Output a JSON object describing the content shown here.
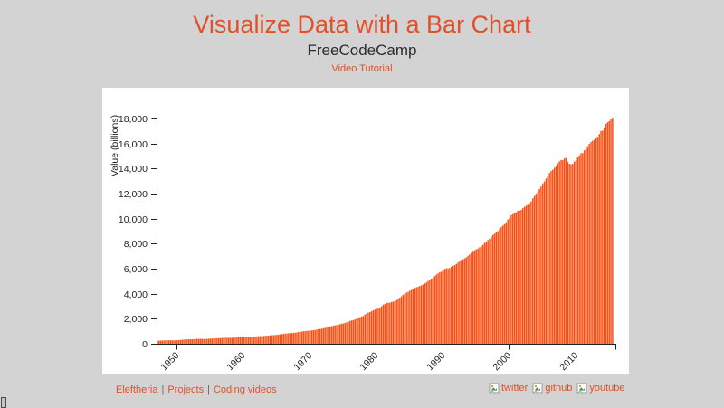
{
  "page": {
    "background": "#d3d3d3",
    "panel_background": "#ffffff",
    "accent": "#e1502a"
  },
  "header": {
    "title": "Visualize Data with a Bar Chart",
    "subtitle": "FreeCodeCamp",
    "video_link": "Video Tutorial"
  },
  "footer": {
    "links": [
      "Eleftheria",
      "Projects",
      "Coding videos"
    ],
    "separator": "|",
    "social": [
      {
        "icon": "twitter-broken-image-icon",
        "label": "twitter"
      },
      {
        "icon": "github-broken-image-icon",
        "label": "github"
      },
      {
        "icon": "youtube-broken-image-icon",
        "label": "youtube"
      }
    ]
  },
  "chart_data": {
    "type": "bar",
    "ylabel": "Value (billions)",
    "ylim": [
      0,
      18000
    ],
    "y_tick_values": [
      0,
      2000,
      4000,
      6000,
      8000,
      10000,
      12000,
      14000,
      16000,
      18000
    ],
    "x_tick_years": [
      1950,
      1960,
      1970,
      1980,
      1990,
      2000,
      2010
    ],
    "x_range": [
      1947.0,
      2015.75
    ],
    "x_start": 1947.0,
    "x_step": 0.25,
    "grid": false,
    "legend": false,
    "bar_color": "#fa4f13",
    "axis_color": "#222222",
    "values": [
      243.1,
      246.3,
      250.1,
      260.3,
      266.2,
      272.9,
      279.5,
      280.7,
      275.4,
      271.7,
      273.3,
      271.0,
      281.2,
      290.7,
      308.5,
      320.3,
      336.4,
      344.5,
      351.8,
      356.6,
      360.2,
      361.4,
      368.1,
      381.2,
      388.5,
      392.3,
      391.7,
      386.5,
      385.9,
      386.7,
      391.6,
      400.3,
      413.8,
      422.2,
      430.9,
      437.8,
      440.5,
      446.8,
      452.0,
      461.3,
      470.6,
      472.8,
      480.3,
      475.7,
      468.4,
      472.8,
      486.7,
      500.4,
      511.1,
      524.2,
      525.2,
      529.3,
      543.3,
      542.7,
      546.0,
      541.1,
      545.9,
      557.4,
      568.2,
      581.6,
      595.2,
      602.6,
      609.6,
      613.1,
      622.7,
      631.8,
      645.0,
      654.8,
      671.1,
      680.8,
      692.8,
      698.4,
      719.2,
      732.4,
      750.2,
      773.1,
      797.3,
      807.2,
      820.8,
      834.9,
      846.0,
      851.1,
      866.6,
      883.2,
      911.1,
      936.3,
      952.3,
      970.1,
      995.4,
      1011.4,
      1032.0,
      1040.7,
      1053.5,
      1070.1,
      1088.5,
      1091.5,
      1137.8,
      1159.4,
      1180.3,
      1193.6,
      1233.8,
      1270.1,
      1293.8,
      1332.0,
      1380.7,
      1417.6,
      1436.8,
      1479.1,
      1494.7,
      1534.2,
      1563.4,
      1603.0,
      1619.6,
      1656.4,
      1713.8,
      1765.9,
      1824.5,
      1856.9,
      1890.5,
      1938.4,
      1992.5,
      2060.2,
      2122.4,
      2168.7,
      2208.7,
      2336.6,
      2398.9,
      2482.2,
      2531.6,
      2595.9,
      2670.4,
      2730.7,
      2796.5,
      2799.9,
      2860.0,
      2993.5,
      3131.8,
      3167.3,
      3261.2,
      3283.5,
      3273.8,
      3331.3,
      3367.1,
      3407.8,
      3480.3,
      3583.8,
      3692.3,
      3796.1,
      3912.8,
      4015.0,
      4087.4,
      4147.6,
      4237.0,
      4302.3,
      4394.6,
      4453.1,
      4516.3,
      4555.2,
      4619.6,
      4669.4,
      4736.2,
      4821.5,
      4900.5,
      5022.7,
      5090.6,
      5207.7,
      5299.5,
      5412.7,
      5527.4,
      5628.4,
      5711.6,
      5763.4,
      5890.8,
      5974.7,
      6029.5,
      6023.3,
      6054.9,
      6143.6,
      6218.4,
      6279.3,
      6380.8,
      6492.3,
      6586.5,
      6697.6,
      6748.2,
      6829.6,
      6904.2,
      7032.8,
      7136.3,
      7269.8,
      7352.3,
      7476.7,
      7545.3,
      7604.9,
      7706.5,
      7799.5,
      7893.1,
      8061.5,
      8159.0,
      8287.1,
      8402.1,
      8551.9,
      8691.8,
      8788.3,
      8889.7,
      8994.7,
      9146.5,
      9325.7,
      9447.1,
      9557.0,
      9712.3,
      9926.1,
      10031.0,
      10278.3,
      10357.4,
      10472.3,
      10508.1,
      10638.4,
      10639.5,
      10701.3,
      10834.4,
      10934.8,
      11037.1,
      11103.8,
      11230.1,
      11370.7,
      11625.1,
      11816.8,
      11988.4,
      12181.4,
      12367.7,
      12562.2,
      12813.7,
      12974.1,
      13205.4,
      13381.6,
      13648.9,
      13799.8,
      13908.5,
      14066.4,
      14233.2,
      14422.3,
      14569.7,
      14685.3,
      14668.4,
      14813.0,
      14843.0,
      14549.9,
      14383.9,
      14340.4,
      14384.1,
      14566.5,
      14681.1,
      14888.6,
      15057.7,
      15230.2,
      15238.4,
      15460.9,
      15587.1,
      15785.3,
      15973.9,
      16121.9,
      16227.9,
      16297.3,
      16475.4,
      16541.4,
      16749.3,
      16999.9,
      17025.2,
      17285.6,
      17569.4,
      17692.2,
      17783.6,
      17998.3,
      18064.7
    ]
  }
}
